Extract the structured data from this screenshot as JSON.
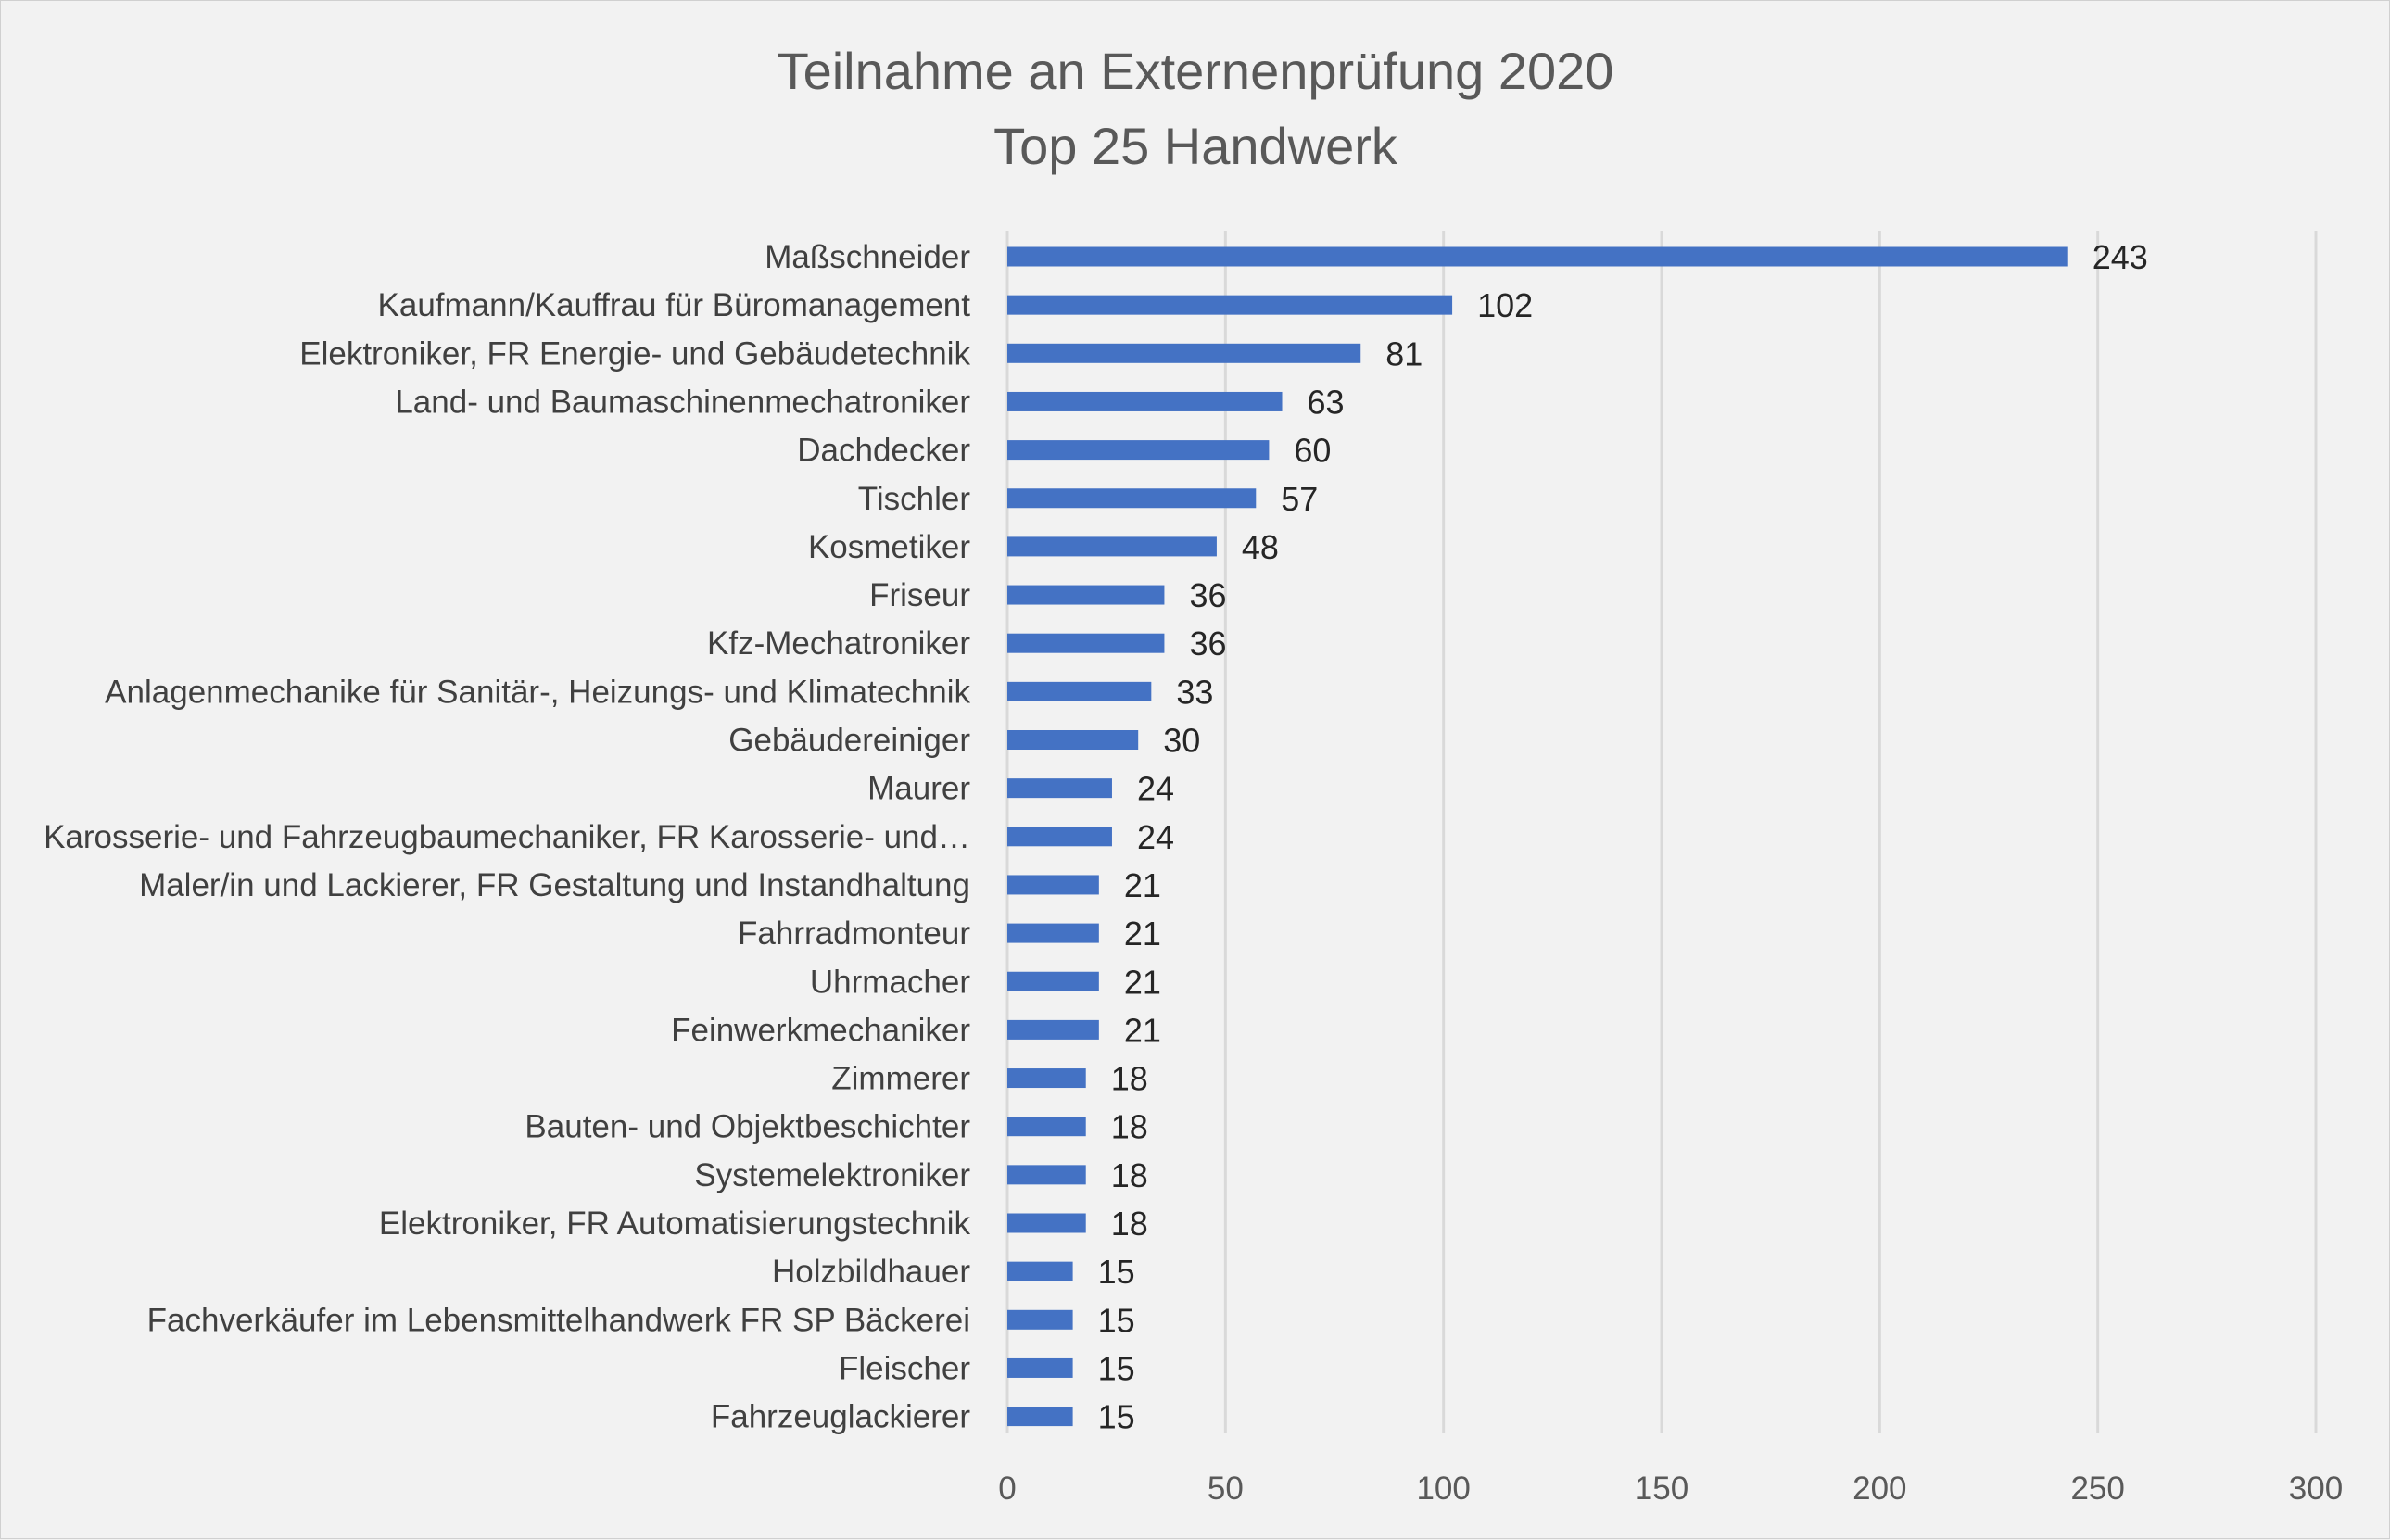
{
  "chart_data": {
    "type": "bar",
    "orientation": "horizontal",
    "title": "Teilnahme an Externenprüfung 2020",
    "subtitle": "Top 25 Handwerk",
    "categories": [
      "Maßschneider",
      "Kaufmann/Kauffrau für Büromanagement",
      "Elektroniker, FR Energie- und Gebäudetechnik",
      "Land- und Baumaschinenmechatroniker",
      "Dachdecker",
      "Tischler",
      "Kosmetiker",
      "Friseur",
      "Kfz-Mechatroniker",
      "Anlagenmechanike für Sanitär-, Heizungs- und Klimatechnik",
      "Gebäudereiniger",
      "Maurer",
      "Karosserie- und Fahrzeugbaumechaniker, FR Karosserie- und…",
      "Maler/in und Lackierer, FR Gestaltung und Instandhaltung",
      "Fahrradmonteur",
      "Uhrmacher",
      "Feinwerkmechaniker",
      "Zimmerer",
      "Bauten- und Objektbeschichter",
      "Systemelektroniker",
      "Elektroniker, FR Automatisierungstechnik",
      "Holzbildhauer",
      "Fachverkäufer im Lebensmittelhandwerk FR SP Bäckerei",
      "Fleischer",
      "Fahrzeuglackierer"
    ],
    "values": [
      243,
      102,
      81,
      63,
      60,
      57,
      48,
      36,
      36,
      33,
      30,
      24,
      24,
      21,
      21,
      21,
      21,
      18,
      18,
      18,
      18,
      15,
      15,
      15,
      15
    ],
    "xlim": [
      0,
      300
    ],
    "xticks": [
      0,
      50,
      100,
      150,
      200,
      250,
      300
    ],
    "xlabel": "",
    "ylabel": "",
    "grid": "vertical",
    "legend": "none",
    "bar_color": "#4472c4"
  }
}
